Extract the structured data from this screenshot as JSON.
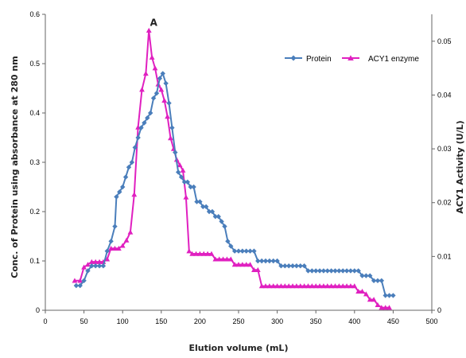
{
  "chart_data": {
    "type": "line",
    "xlabel": "Elution volume (mL)",
    "ylabel_left": "Conc. of Protein using absorbance at 280 nm",
    "ylabel_right": "ACY1 Activity (U/L)",
    "xlim": [
      0,
      500
    ],
    "ylim_left": [
      0,
      0.6
    ],
    "ylim_right": [
      0,
      0.055
    ],
    "x_ticks": [
      0,
      50,
      100,
      150,
      200,
      250,
      300,
      350,
      400,
      450,
      500
    ],
    "y_left_ticks": [
      0,
      0.1,
      0.2,
      0.3,
      0.4,
      0.5,
      0.6
    ],
    "y_right_ticks": [
      0,
      0.01,
      0.02,
      0.03,
      0.04,
      0.05
    ],
    "y_left_tick_labels": [
      "0",
      "0.1",
      "0.2",
      "0.3",
      "0.4",
      "0.5",
      "0.6"
    ],
    "y_right_tick_labels": [
      "0",
      "0.01",
      "0.02",
      "0.03",
      "0.04",
      "0.05"
    ],
    "legend_position": "top-right",
    "annotation": {
      "text": "A",
      "x": 134
    },
    "series": [
      {
        "name": "Protein",
        "axis": "left",
        "color": "#4a7ebb",
        "marker": "diamond",
        "points": [
          [
            40,
            0.05
          ],
          [
            45,
            0.05
          ],
          [
            50,
            0.06
          ],
          [
            55,
            0.08
          ],
          [
            60,
            0.09
          ],
          [
            65,
            0.09
          ],
          [
            70,
            0.09
          ],
          [
            75,
            0.09
          ],
          [
            80,
            0.12
          ],
          [
            85,
            0.14
          ],
          [
            90,
            0.17
          ],
          [
            92,
            0.23
          ],
          [
            96,
            0.24
          ],
          [
            100,
            0.25
          ],
          [
            104,
            0.27
          ],
          [
            108,
            0.29
          ],
          [
            112,
            0.3
          ],
          [
            116,
            0.33
          ],
          [
            120,
            0.35
          ],
          [
            124,
            0.37
          ],
          [
            128,
            0.38
          ],
          [
            132,
            0.39
          ],
          [
            136,
            0.4
          ],
          [
            140,
            0.43
          ],
          [
            144,
            0.44
          ],
          [
            148,
            0.47
          ],
          [
            152,
            0.48
          ],
          [
            156,
            0.46
          ],
          [
            160,
            0.42
          ],
          [
            164,
            0.37
          ],
          [
            168,
            0.32
          ],
          [
            172,
            0.28
          ],
          [
            176,
            0.27
          ],
          [
            180,
            0.26
          ],
          [
            184,
            0.26
          ],
          [
            188,
            0.25
          ],
          [
            192,
            0.25
          ],
          [
            196,
            0.22
          ],
          [
            200,
            0.22
          ],
          [
            204,
            0.21
          ],
          [
            208,
            0.21
          ],
          [
            212,
            0.2
          ],
          [
            216,
            0.2
          ],
          [
            220,
            0.19
          ],
          [
            224,
            0.19
          ],
          [
            228,
            0.18
          ],
          [
            232,
            0.17
          ],
          [
            236,
            0.14
          ],
          [
            240,
            0.13
          ],
          [
            245,
            0.12
          ],
          [
            250,
            0.12
          ],
          [
            255,
            0.12
          ],
          [
            260,
            0.12
          ],
          [
            265,
            0.12
          ],
          [
            270,
            0.12
          ],
          [
            275,
            0.1
          ],
          [
            280,
            0.1
          ],
          [
            285,
            0.1
          ],
          [
            290,
            0.1
          ],
          [
            295,
            0.1
          ],
          [
            300,
            0.1
          ],
          [
            305,
            0.09
          ],
          [
            310,
            0.09
          ],
          [
            315,
            0.09
          ],
          [
            320,
            0.09
          ],
          [
            325,
            0.09
          ],
          [
            330,
            0.09
          ],
          [
            335,
            0.09
          ],
          [
            340,
            0.08
          ],
          [
            345,
            0.08
          ],
          [
            350,
            0.08
          ],
          [
            355,
            0.08
          ],
          [
            360,
            0.08
          ],
          [
            365,
            0.08
          ],
          [
            370,
            0.08
          ],
          [
            375,
            0.08
          ],
          [
            380,
            0.08
          ],
          [
            385,
            0.08
          ],
          [
            390,
            0.08
          ],
          [
            395,
            0.08
          ],
          [
            400,
            0.08
          ],
          [
            405,
            0.08
          ],
          [
            410,
            0.07
          ],
          [
            415,
            0.07
          ],
          [
            420,
            0.07
          ],
          [
            425,
            0.06
          ],
          [
            430,
            0.06
          ],
          [
            435,
            0.06
          ],
          [
            440,
            0.03
          ],
          [
            445,
            0.03
          ],
          [
            450,
            0.03
          ]
        ]
      },
      {
        "name": "ACY1 enzyme",
        "axis": "right",
        "color": "#e020c0",
        "marker": "triangle",
        "points": [
          [
            38,
            0.0055
          ],
          [
            45,
            0.0055
          ],
          [
            50,
            0.008
          ],
          [
            55,
            0.0085
          ],
          [
            60,
            0.009
          ],
          [
            65,
            0.009
          ],
          [
            70,
            0.009
          ],
          [
            75,
            0.009
          ],
          [
            80,
            0.0095
          ],
          [
            85,
            0.0115
          ],
          [
            90,
            0.0115
          ],
          [
            95,
            0.0115
          ],
          [
            100,
            0.012
          ],
          [
            105,
            0.013
          ],
          [
            110,
            0.0145
          ],
          [
            115,
            0.0215
          ],
          [
            120,
            0.034
          ],
          [
            125,
            0.041
          ],
          [
            130,
            0.044
          ],
          [
            134,
            0.052
          ],
          [
            138,
            0.047
          ],
          [
            142,
            0.045
          ],
          [
            146,
            0.042
          ],
          [
            150,
            0.041
          ],
          [
            154,
            0.039
          ],
          [
            158,
            0.036
          ],
          [
            162,
            0.032
          ],
          [
            166,
            0.03
          ],
          [
            170,
            0.028
          ],
          [
            174,
            0.027
          ],
          [
            178,
            0.026
          ],
          [
            182,
            0.021
          ],
          [
            186,
            0.011
          ],
          [
            190,
            0.0105
          ],
          [
            195,
            0.0105
          ],
          [
            200,
            0.0105
          ],
          [
            205,
            0.0105
          ],
          [
            210,
            0.0105
          ],
          [
            215,
            0.0105
          ],
          [
            220,
            0.0095
          ],
          [
            225,
            0.0095
          ],
          [
            230,
            0.0095
          ],
          [
            235,
            0.0095
          ],
          [
            240,
            0.0095
          ],
          [
            245,
            0.0085
          ],
          [
            250,
            0.0085
          ],
          [
            255,
            0.0085
          ],
          [
            260,
            0.0085
          ],
          [
            265,
            0.0085
          ],
          [
            270,
            0.0075
          ],
          [
            275,
            0.0075
          ],
          [
            280,
            0.0045
          ],
          [
            285,
            0.0045
          ],
          [
            290,
            0.0045
          ],
          [
            295,
            0.0045
          ],
          [
            300,
            0.0045
          ],
          [
            305,
            0.0045
          ],
          [
            310,
            0.0045
          ],
          [
            315,
            0.0045
          ],
          [
            320,
            0.0045
          ],
          [
            325,
            0.0045
          ],
          [
            330,
            0.0045
          ],
          [
            335,
            0.0045
          ],
          [
            340,
            0.0045
          ],
          [
            345,
            0.0045
          ],
          [
            350,
            0.0045
          ],
          [
            355,
            0.0045
          ],
          [
            360,
            0.0045
          ],
          [
            365,
            0.0045
          ],
          [
            370,
            0.0045
          ],
          [
            375,
            0.0045
          ],
          [
            380,
            0.0045
          ],
          [
            385,
            0.0045
          ],
          [
            390,
            0.0045
          ],
          [
            395,
            0.0045
          ],
          [
            400,
            0.0045
          ],
          [
            405,
            0.0035
          ],
          [
            410,
            0.0035
          ],
          [
            415,
            0.003
          ],
          [
            420,
            0.002
          ],
          [
            425,
            0.002
          ],
          [
            430,
            0.001
          ],
          [
            435,
            0.0005
          ],
          [
            440,
            0.0005
          ],
          [
            445,
            0.0005
          ]
        ]
      }
    ]
  }
}
